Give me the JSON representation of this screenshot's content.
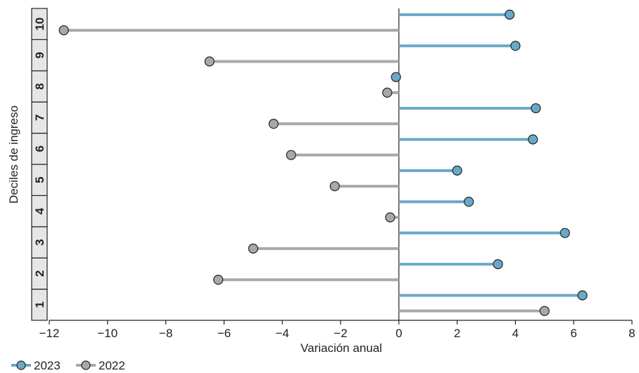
{
  "chart_data": {
    "type": "lollipop",
    "orientation": "horizontal",
    "xlabel": "Variación anual",
    "ylabel": "Deciles de ingreso",
    "xlim": [
      -12,
      8
    ],
    "xticks": [
      -12,
      -10,
      -8,
      -6,
      -4,
      -2,
      0,
      2,
      4,
      6,
      8
    ],
    "xtick_labels": [
      "−12",
      "−10",
      "−8",
      "−6",
      "−4",
      "−2",
      "0",
      "2",
      "4",
      "6",
      "8"
    ],
    "categories": [
      "1",
      "2",
      "3",
      "4",
      "5",
      "6",
      "7",
      "8",
      "9",
      "10"
    ],
    "series": [
      {
        "name": "2023",
        "color": "#6aa8c8",
        "values": [
          6.3,
          3.4,
          5.7,
          2.4,
          2.0,
          4.6,
          4.7,
          -0.1,
          4.0,
          3.8
        ]
      },
      {
        "name": "2022",
        "color": "#a8a8a8",
        "values": [
          5.0,
          -6.2,
          -5.0,
          -0.3,
          -2.2,
          -3.7,
          -4.3,
          -0.4,
          -6.5,
          -11.5
        ]
      }
    ],
    "grid": false,
    "legend_position": "bottom-left"
  }
}
